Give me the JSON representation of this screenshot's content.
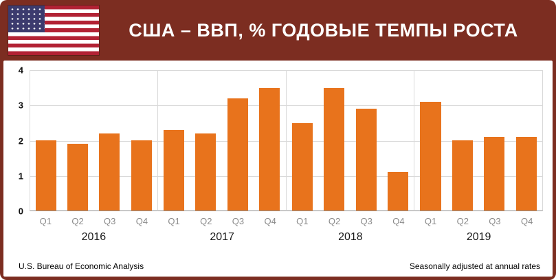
{
  "header": {
    "title": "США – ВВП, % ГОДОВЫЕ ТЕМПЫ РОСТА"
  },
  "chart_data": {
    "type": "bar",
    "title": "США – ВВП, % ГОДОВЫЕ ТЕМПЫ РОСТА",
    "ylabel": "",
    "xlabel": "",
    "ylim": [
      0,
      4
    ],
    "yticks": [
      0,
      1,
      2,
      3,
      4
    ],
    "grid": "horizontal gridlines at integers, vertical separators between years",
    "legend": "none",
    "bar_color": "#e8731c",
    "quarter_labels": [
      "Q1",
      "Q2",
      "Q3",
      "Q4"
    ],
    "groups": [
      {
        "year": "2016",
        "values": [
          2.0,
          1.9,
          2.2,
          2.0
        ]
      },
      {
        "year": "2017",
        "values": [
          2.3,
          2.2,
          3.2,
          3.5
        ]
      },
      {
        "year": "2018",
        "values": [
          2.5,
          3.5,
          2.9,
          1.1
        ]
      },
      {
        "year": "2019",
        "values": [
          3.1,
          2.0,
          2.1,
          2.1
        ]
      }
    ]
  },
  "footer": {
    "source": "U.S. Bureau of Economic Analysis",
    "note": "Seasonally adjusted at annual rates"
  },
  "colors": {
    "frame": "#7c2d21",
    "bar": "#e8731c",
    "gridline": "#d9d9d9",
    "axis": "#8c8c8c",
    "flag_red": "#B22234",
    "flag_blue": "#3C3B6E"
  }
}
